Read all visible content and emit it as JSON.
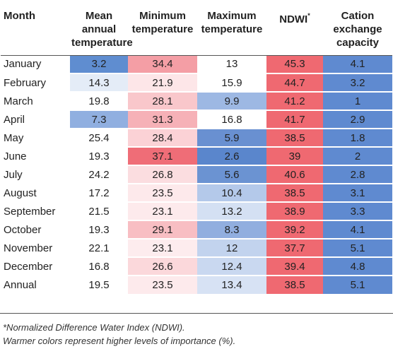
{
  "headers": {
    "month": "Month",
    "mean": "Mean annual temperature",
    "min": "Minimum temperature",
    "max": "Maximum temperature",
    "ndwi": "NDWI",
    "ndwi_sup": "*",
    "cec": "Cation exchange capacity"
  },
  "rows": [
    {
      "month": "January",
      "mean": "3.2",
      "min": "34.4",
      "max": "13",
      "ndwi": "45.3",
      "cec": "4.1"
    },
    {
      "month": "February",
      "mean": "14.3",
      "min": "21.9",
      "max": "15.9",
      "ndwi": "44.7",
      "cec": "3.2"
    },
    {
      "month": "March",
      "mean": "19.8",
      "min": "28.1",
      "max": "9.9",
      "ndwi": "41.2",
      "cec": "1"
    },
    {
      "month": "April",
      "mean": "7.3",
      "min": "31.3",
      "max": "16.8",
      "ndwi": "41.7",
      "cec": "2.9"
    },
    {
      "month": "May",
      "mean": "25.4",
      "min": "28.4",
      "max": "5.9",
      "ndwi": "38.5",
      "cec": "1.8"
    },
    {
      "month": "June",
      "mean": "19.3",
      "min": "37.1",
      "max": "2.6",
      "ndwi": "39",
      "cec": "2"
    },
    {
      "month": "July",
      "mean": "24.2",
      "min": "26.8",
      "max": "5.6",
      "ndwi": "40.6",
      "cec": "2.8"
    },
    {
      "month": "August",
      "mean": "17.2",
      "min": "23.5",
      "max": "10.4",
      "ndwi": "38.5",
      "cec": "3.1"
    },
    {
      "month": "September",
      "mean": "21.5",
      "min": "23.1",
      "max": "13.2",
      "ndwi": "38.9",
      "cec": "3.3"
    },
    {
      "month": "October",
      "mean": "19.3",
      "min": "29.1",
      "max": "8.3",
      "ndwi": "39.2",
      "cec": "4.1"
    },
    {
      "month": "November",
      "mean": "22.1",
      "min": "23.1",
      "max": "12",
      "ndwi": "37.7",
      "cec": "5.1"
    },
    {
      "month": "December",
      "mean": "16.8",
      "min": "26.6",
      "max": "12.4",
      "ndwi": "39.4",
      "cec": "4.8"
    },
    {
      "month": "Annual",
      "mean": "19.5",
      "min": "23.5",
      "max": "13.4",
      "ndwi": "38.5",
      "cec": "5.1"
    }
  ],
  "cell_colors": {
    "mean": [
      "#5f8dd0",
      "#e4ecf7",
      "#ffffff",
      "#90afe0",
      "#ffffff",
      "#ffffff",
      "#ffffff",
      "#ffffff",
      "#ffffff",
      "#ffffff",
      "#ffffff",
      "#ffffff",
      "#ffffff"
    ],
    "min": [
      "#f49ea5",
      "#fde6e8",
      "#f9c7cb",
      "#f6b1b7",
      "#fbd2d6",
      "#ef6d77",
      "#fbdde0",
      "#fde9eb",
      "#fdeaec",
      "#f8bec3",
      "#fdecee",
      "#fbd8db",
      "#fdeaec"
    ],
    "max": [
      "#ffffff",
      "#ffffff",
      "#9db8e3",
      "#ffffff",
      "#6990d1",
      "#5a86cc",
      "#6b93d2",
      "#b4c9ea",
      "#d4e0f3",
      "#91aedf",
      "#c2d3ee",
      "#c9d8f0",
      "#d7e2f4"
    ],
    "ndwi": [
      "#ef6971",
      "#ef6971",
      "#ef6971",
      "#ef6971",
      "#ef6971",
      "#ef6971",
      "#ef6971",
      "#ef6971",
      "#ef6971",
      "#ef6971",
      "#ef6971",
      "#ef6971",
      "#ef6971"
    ],
    "cec": [
      "#5f8ad0",
      "#5f8ad0",
      "#5f8ad0",
      "#5f8ad0",
      "#5f8ad0",
      "#5f8ad0",
      "#5f8ad0",
      "#5f8ad0",
      "#5f8ad0",
      "#5f8ad0",
      "#5f8ad0",
      "#5f8ad0",
      "#5f8ad0"
    ]
  },
  "footnotes": {
    "note1": "*Normalized Difference Water Index (NDWI).",
    "note2": "Warmer colors represent higher levels of importance (%)."
  }
}
